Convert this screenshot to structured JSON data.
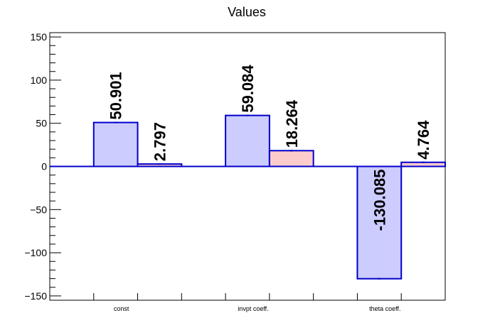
{
  "chart_data": {
    "type": "bar",
    "title": "Values",
    "categories": [
      "const",
      "invpt coeff.",
      "theta coeff."
    ],
    "series": [
      {
        "values": [
          50.901,
          59.084,
          -130.085
        ],
        "labels": [
          "50.901",
          "59.084",
          "-130.085"
        ],
        "color": "#ccccff"
      },
      {
        "values": [
          2.797,
          18.264,
          4.764
        ],
        "labels": [
          "2.797",
          "18.264",
          "4.764"
        ],
        "color": "#ffcccc"
      }
    ],
    "ylim": [
      -155,
      155
    ],
    "yticks": [
      -150,
      -100,
      -50,
      0,
      50,
      100,
      150
    ],
    "ytick_labels": [
      "−150",
      "−100",
      "−50",
      "0",
      "50",
      "100",
      "150"
    ],
    "xlabel": "",
    "ylabel": "",
    "grid": false,
    "colors": {
      "bar_edge": "#0000cc",
      "zero_line": "#0000cc",
      "frame": "#000000"
    }
  }
}
